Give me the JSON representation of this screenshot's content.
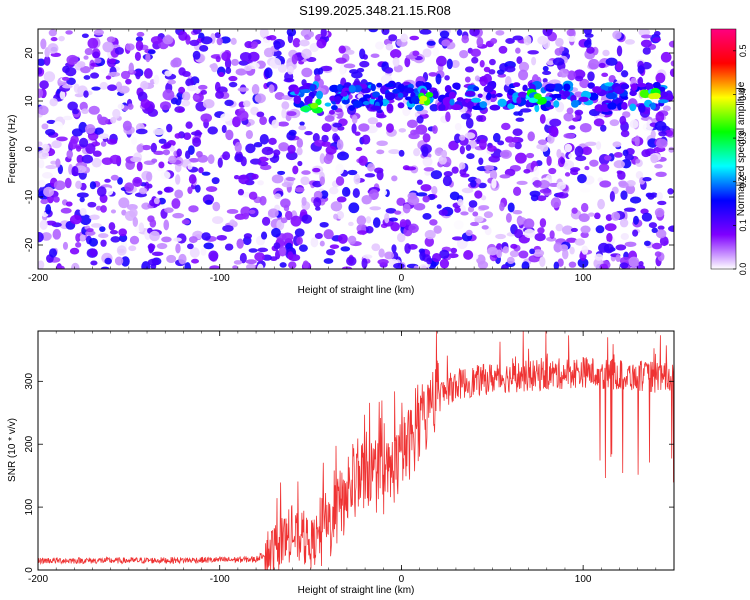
{
  "title": "S199.2025.348.21.15.R08",
  "chart_data": [
    {
      "type": "heatmap",
      "xlabel": "Height of straight line (km)",
      "ylabel": "Frequency (Hz)",
      "xlim": [
        -200,
        150
      ],
      "ylim": [
        -25,
        25
      ],
      "xticks": [
        -200,
        -100,
        0,
        100
      ],
      "yticks": [
        -20,
        -10,
        0,
        10,
        20
      ],
      "colorbar": {
        "label": "Normalized spectral amplitude",
        "range": [
          0,
          0.55
        ],
        "ticks": [
          "0.0",
          "0.1",
          "0.2",
          "0.3",
          "0.4",
          "0.5"
        ],
        "colors": [
          "#ffffff",
          "#7f00ff",
          "#0000ff",
          "#00ffff",
          "#00ff00",
          "#ffff00",
          "#ff0000",
          "#ff0080"
        ]
      },
      "signal_band": {
        "center_frequency": 11,
        "x_start": -60,
        "x_end": 150,
        "strong_patches": [
          {
            "x": -48,
            "y": 9,
            "value": 0.35
          },
          {
            "x": 12,
            "y": 10.5,
            "value": 0.38
          },
          {
            "x": 75,
            "y": 11,
            "value": 0.33
          },
          {
            "x": 138,
            "y": 11,
            "value": 0.38
          }
        ]
      },
      "background_level": [
        0.05,
        0.15
      ]
    },
    {
      "type": "line",
      "xlabel": "Height of straight line (km)",
      "ylabel": "SNR (10 * v/v)",
      "xlim": [
        -200,
        150
      ],
      "ylim": [
        0,
        380
      ],
      "xticks": [
        -200,
        -100,
        0,
        100
      ],
      "yticks": [
        0,
        100,
        200,
        300
      ],
      "color": "#ef3333",
      "trend": {
        "x": [
          -200,
          -150,
          -100,
          -80,
          -70,
          -60,
          -50,
          -40,
          -30,
          -20,
          -10,
          0,
          10,
          20,
          30,
          50,
          80,
          100,
          120,
          150
        ],
        "y": [
          15,
          15,
          16,
          17,
          35,
          55,
          40,
          70,
          120,
          160,
          140,
          180,
          230,
          275,
          295,
          305,
          310,
          315,
          310,
          305
        ]
      },
      "noise_amplitude": [
        5,
        10,
        25,
        40,
        60,
        30
      ],
      "spike_max": 380,
      "dropouts": {
        "x_start": 108,
        "x_end": 150,
        "min": 130
      }
    }
  ]
}
